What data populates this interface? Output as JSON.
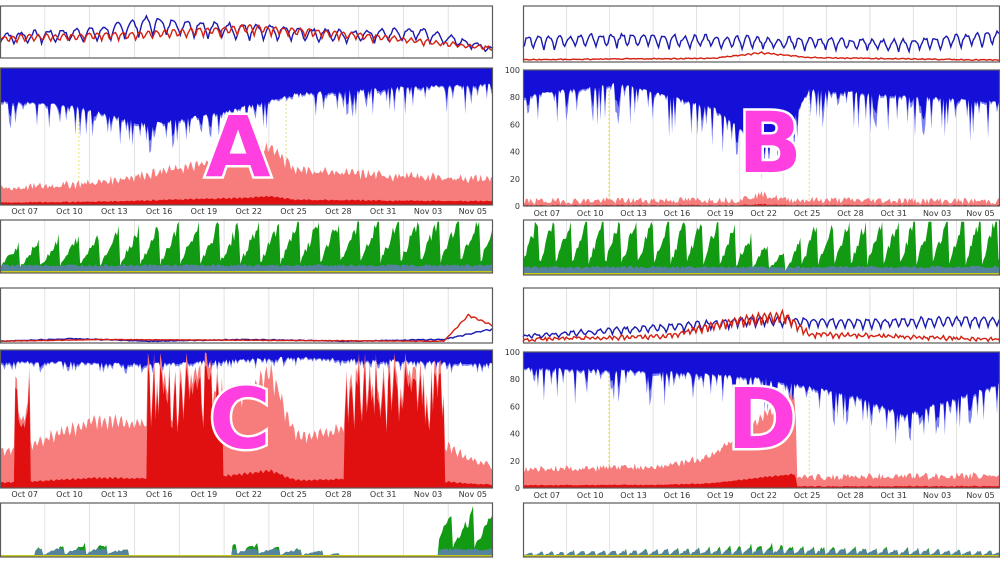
{
  "chart_data": [
    {
      "panel": "A",
      "type": "area",
      "x_ticks": [
        "Oct 07",
        "Oct 10",
        "Oct 13",
        "Oct 16",
        "Oct 19",
        "Oct 22",
        "Oct 25",
        "Oct 28",
        "Oct 31",
        "Nov 03",
        "Nov 05"
      ],
      "y_ticks": [],
      "charts": {
        "top": {
          "type": "line",
          "series": [
            {
              "color": "#1a1ab0",
              "profile": [
                [
                  0,
                  0.45
                ],
                [
                  0.2,
                  0.55
                ],
                [
                  0.3,
                  0.75
                ],
                [
                  0.5,
                  0.6
                ],
                [
                  0.7,
                  0.5
                ],
                [
                  0.85,
                  0.55
                ],
                [
                  1,
                  0.2
                ]
              ],
              "amp": 0.45,
              "period": 18
            },
            {
              "color": "#d42010",
              "profile": [
                [
                  0,
                  0.5
                ],
                [
                  0.3,
                  0.6
                ],
                [
                  0.5,
                  0.75
                ],
                [
                  0.7,
                  0.6
                ],
                [
                  1,
                  0.25
                ]
              ],
              "amp": 0.25,
              "period": 11
            }
          ]
        },
        "middle": {
          "type": "area",
          "blue_depth": [
            [
              0,
              0.25
            ],
            [
              0.15,
              0.3
            ],
            [
              0.3,
              0.45
            ],
            [
              0.45,
              0.35
            ],
            [
              0.6,
              0.2
            ],
            [
              0.8,
              0.15
            ],
            [
              1,
              0.12
            ]
          ],
          "blue_spike": 0.25,
          "red_level": [
            [
              0,
              0.08
            ],
            [
              0.2,
              0.12
            ],
            [
              0.35,
              0.2
            ],
            [
              0.5,
              0.28
            ],
            [
              0.55,
              0.35
            ],
            [
              0.6,
              0.2
            ],
            [
              0.8,
              0.16
            ],
            [
              1,
              0.14
            ]
          ],
          "red_spike": 0.25,
          "red_bursts": []
        },
        "bottom": {
          "type": "area",
          "green_level": [
            [
              0,
              0.35
            ],
            [
              0.3,
              0.6
            ],
            [
              0.6,
              0.65
            ],
            [
              1,
              0.75
            ]
          ],
          "green_amp": 0.4,
          "period": 13,
          "gaps": []
        }
      }
    },
    {
      "panel": "B",
      "type": "area",
      "x_ticks": [
        "Oct 07",
        "Oct 10",
        "Oct 13",
        "Oct 16",
        "Oct 19",
        "Oct 22",
        "Oct 25",
        "Oct 28",
        "Oct 31",
        "Nov 03",
        "Nov 05"
      ],
      "y_ticks": [
        "100",
        "80",
        "60",
        "40",
        "20",
        "0"
      ],
      "charts": {
        "top": {
          "type": "line",
          "series": [
            {
              "color": "#1a1ab0",
              "profile": [
                [
                  0,
                  0.4
                ],
                [
                  0.2,
                  0.45
                ],
                [
                  0.5,
                  0.4
                ],
                [
                  0.8,
                  0.35
                ],
                [
                  1,
                  0.5
                ]
              ],
              "amp": 0.5,
              "period": 14
            },
            {
              "color": "#d42010",
              "profile": [
                [
                  0,
                  0.06
                ],
                [
                  0.4,
                  0.1
                ],
                [
                  0.5,
                  0.25
                ],
                [
                  0.6,
                  0.12
                ],
                [
                  1,
                  0.05
                ]
              ],
              "amp": 0.1,
              "period": 9
            }
          ]
        },
        "middle": {
          "type": "area",
          "blue_depth": [
            [
              0,
              0.2
            ],
            [
              0.2,
              0.1
            ],
            [
              0.4,
              0.3
            ],
            [
              0.5,
              0.6
            ],
            [
              0.55,
              0.5
            ],
            [
              0.6,
              0.15
            ],
            [
              1,
              0.25
            ]
          ],
          "blue_spike": 0.35,
          "red_level": [
            [
              0,
              0.01
            ],
            [
              0.45,
              0.02
            ],
            [
              0.5,
              0.06
            ],
            [
              0.55,
              0.02
            ],
            [
              1,
              0.01
            ]
          ],
          "red_spike": 0.04,
          "red_bursts": []
        },
        "bottom": {
          "type": "area",
          "green_level": [
            [
              0,
              0.7
            ],
            [
              0.4,
              0.7
            ],
            [
              0.55,
              0.25
            ],
            [
              0.6,
              0.65
            ],
            [
              1,
              0.75
            ]
          ],
          "green_amp": 0.45,
          "period": 11,
          "gaps": []
        }
      }
    },
    {
      "panel": "C",
      "type": "area",
      "x_ticks": [
        "Oct 07",
        "Oct 10",
        "Oct 13",
        "Oct 16",
        "Oct 19",
        "Oct 22",
        "Oct 25",
        "Oct 28",
        "Oct 31",
        "Nov 03",
        "Nov 05"
      ],
      "y_ticks": [],
      "charts": {
        "top": {
          "type": "line",
          "series": [
            {
              "color": "#1a1ab0",
              "profile": [
                [
                  0,
                  0.05
                ],
                [
                  0.15,
                  0.12
                ],
                [
                  0.3,
                  0.05
                ],
                [
                  0.5,
                  0.1
                ],
                [
                  0.7,
                  0.05
                ],
                [
                  0.9,
                  0.1
                ],
                [
                  1,
                  0.4
                ]
              ],
              "amp": 0.08,
              "period": 12
            },
            {
              "color": "#d42010",
              "profile": [
                [
                  0,
                  0.05
                ],
                [
                  0.2,
                  0.1
                ],
                [
                  0.5,
                  0.08
                ],
                [
                  0.9,
                  0.05
                ],
                [
                  0.95,
                  0.8
                ],
                [
                  1,
                  0.5
                ]
              ],
              "amp": 0.05,
              "period": 9
            }
          ]
        },
        "middle": {
          "type": "area",
          "blue_depth": [
            [
              0,
              0.08
            ],
            [
              0.3,
              0.1
            ],
            [
              0.6,
              0.05
            ],
            [
              1,
              0.1
            ]
          ],
          "blue_spike": 0.1,
          "red_level": [
            [
              0,
              0.2
            ],
            [
              0.2,
              0.4
            ],
            [
              0.4,
              0.35
            ],
            [
              0.55,
              0.7
            ],
            [
              0.6,
              0.3
            ],
            [
              0.8,
              0.4
            ],
            [
              1,
              0.1
            ]
          ],
          "red_spike": 0.25,
          "red_bursts": [
            [
              0.03,
              0.06
            ],
            [
              0.3,
              0.45
            ],
            [
              0.7,
              0.9
            ]
          ]
        },
        "bottom": {
          "type": "area",
          "green_level": [
            [
              0,
              0.1
            ],
            [
              0.2,
              0.2
            ],
            [
              0.3,
              0.05
            ],
            [
              0.5,
              0.2
            ],
            [
              0.7,
              0.05
            ],
            [
              0.9,
              0.6
            ],
            [
              1,
              0.7
            ]
          ],
          "green_amp": 0.2,
          "period": 14,
          "gaps": [
            [
              0.0,
              0.07
            ],
            [
              0.26,
              0.47
            ],
            [
              0.69,
              0.89
            ]
          ]
        }
      }
    },
    {
      "panel": "D",
      "type": "area",
      "x_ticks": [
        "Oct 07",
        "Oct 10",
        "Oct 13",
        "Oct 16",
        "Oct 19",
        "Oct 22",
        "Oct 25",
        "Oct 28",
        "Oct 31",
        "Nov 03",
        "Nov 05"
      ],
      "y_ticks": [
        "100",
        "80",
        "60",
        "40",
        "20",
        "0"
      ],
      "charts": {
        "top": {
          "type": "line",
          "series": [
            {
              "color": "#1a1ab0",
              "profile": [
                [
                  0,
                  0.15
                ],
                [
                  0.3,
                  0.35
                ],
                [
                  0.5,
                  0.5
                ],
                [
                  0.7,
                  0.45
                ],
                [
                  1,
                  0.5
                ]
              ],
              "amp": 0.35,
              "period": 12
            },
            {
              "color": "#d42010",
              "profile": [
                [
                  0,
                  0.08
                ],
                [
                  0.3,
                  0.15
                ],
                [
                  0.45,
                  0.5
                ],
                [
                  0.55,
                  0.6
                ],
                [
                  0.6,
                  0.2
                ],
                [
                  1,
                  0.08
                ]
              ],
              "amp": 0.35,
              "period": 8
            }
          ]
        },
        "middle": {
          "type": "area",
          "blue_depth": [
            [
              0,
              0.12
            ],
            [
              0.3,
              0.15
            ],
            [
              0.5,
              0.2
            ],
            [
              0.7,
              0.35
            ],
            [
              0.8,
              0.5
            ],
            [
              1,
              0.25
            ]
          ],
          "blue_spike": 0.3,
          "red_level": [
            [
              0,
              0.1
            ],
            [
              0.3,
              0.12
            ],
            [
              0.4,
              0.2
            ],
            [
              0.5,
              0.45
            ],
            [
              0.57,
              0.6
            ],
            [
              0.575,
              0.05
            ],
            [
              1,
              0.06
            ]
          ],
          "red_spike": 0.15,
          "red_bursts": []
        },
        "bottom": {
          "type": "area",
          "green_level": [
            [
              0,
              0.08
            ],
            [
              0.4,
              0.15
            ],
            [
              0.5,
              0.2
            ],
            [
              1,
              0.1
            ]
          ],
          "green_amp": 0.15,
          "period": 7,
          "gaps": []
        }
      }
    }
  ],
  "labels": {
    "A": "A",
    "B": "B",
    "C": "C",
    "D": "D"
  }
}
